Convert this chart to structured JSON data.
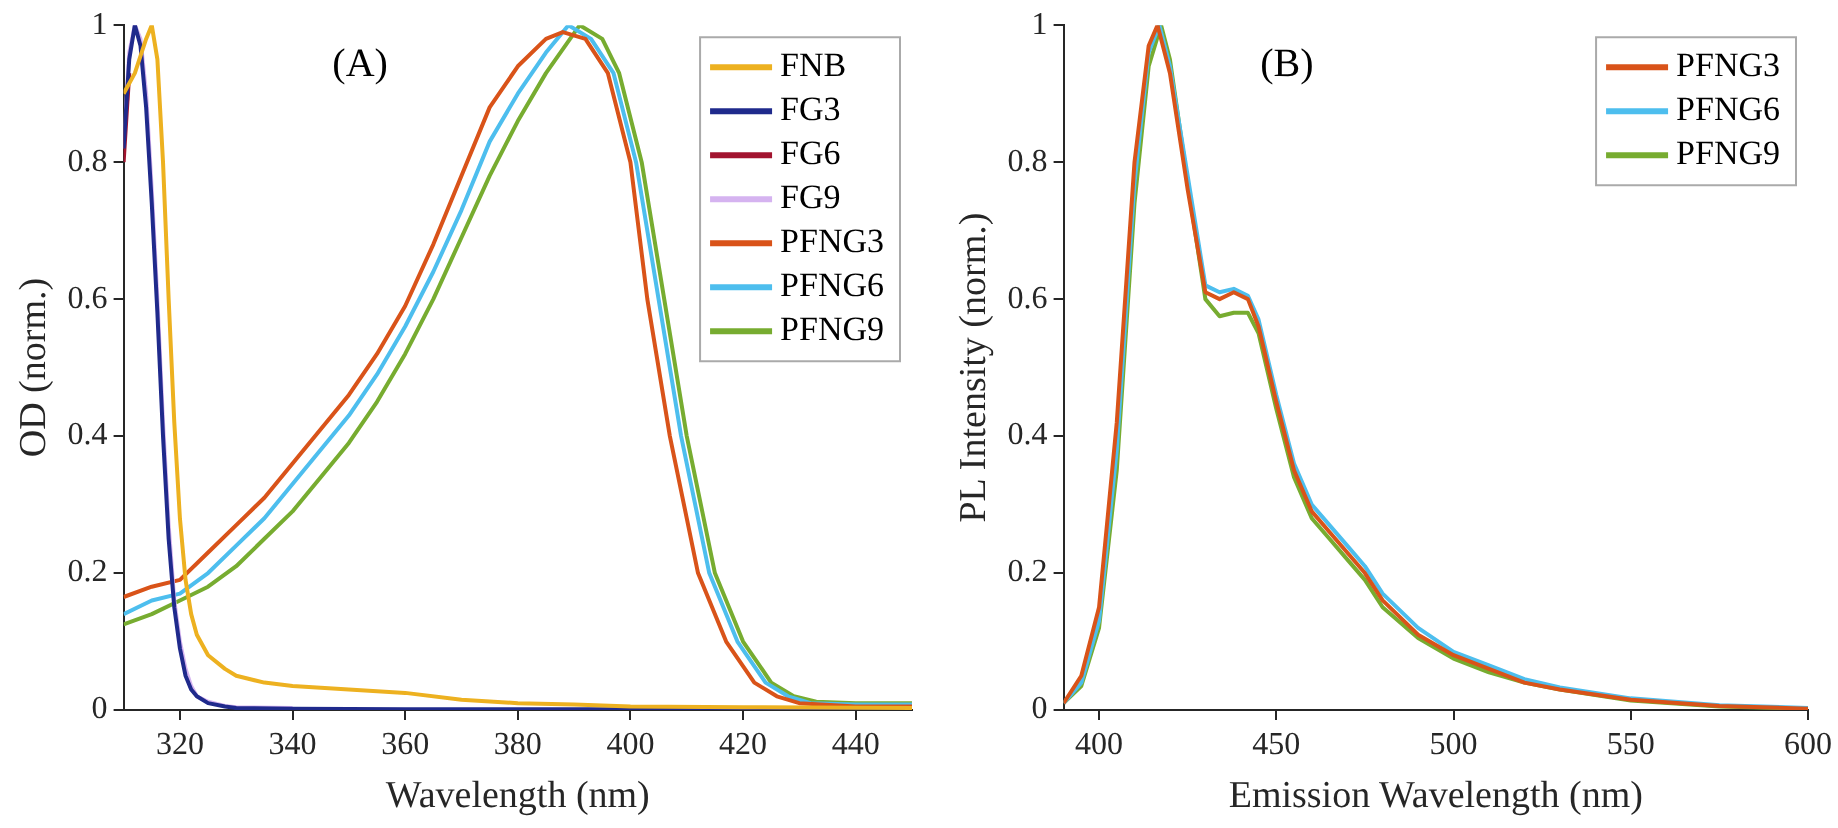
{
  "chart_data": [
    {
      "type": "line",
      "xlabel": "Wavelength (nm)",
      "ylabel": "OD (norm.)",
      "annotations": [
        "(A)"
      ],
      "xlim": [
        310,
        450
      ],
      "xticks": [
        320,
        340,
        360,
        380,
        400,
        420,
        440
      ],
      "ylim": [
        0,
        1
      ],
      "yticks": [
        0,
        0.2,
        0.4,
        0.6,
        0.8,
        1
      ],
      "grid": false,
      "legend": "top right",
      "marker": "none",
      "line_style": "solid",
      "series": [
        {
          "name": "FNB",
          "color": "#edb120",
          "x": [
            310,
            312,
            314,
            315,
            316,
            317,
            318,
            319,
            320,
            321,
            322,
            323,
            325,
            328,
            330,
            335,
            340,
            350,
            360,
            370,
            380,
            390,
            400,
            420,
            450
          ],
          "values": [
            0.9,
            0.93,
            0.98,
            1,
            0.95,
            0.8,
            0.6,
            0.42,
            0.28,
            0.19,
            0.14,
            0.11,
            0.08,
            0.06,
            0.05,
            0.04,
            0.035,
            0.03,
            0.025,
            0.015,
            0.01,
            0.008,
            0.005,
            0.004,
            0.003
          ]
        },
        {
          "name": "FG3",
          "color": "#1f2a8c",
          "x": [
            310,
            311,
            312,
            313,
            314,
            315,
            316,
            317,
            318,
            319,
            320,
            321,
            322,
            323,
            325,
            328,
            330,
            340,
            360,
            400,
            450
          ],
          "values": [
            0.82,
            0.95,
            1,
            0.97,
            0.88,
            0.74,
            0.58,
            0.4,
            0.25,
            0.15,
            0.09,
            0.05,
            0.03,
            0.02,
            0.01,
            0.005,
            0.003,
            0.002,
            0.001,
            0.001,
            0.001
          ]
        },
        {
          "name": "FG6",
          "color": "#a2142f",
          "x": [
            310,
            311
          ],
          "values": [
            0.8,
            0.93
          ]
        },
        {
          "name": "FG9",
          "color": "#d5b3f0",
          "x": [
            310,
            311,
            312,
            313,
            314,
            315,
            316,
            317,
            318,
            319,
            320,
            321,
            322,
            323,
            325,
            328,
            330,
            340
          ],
          "values": [
            0.82,
            0.96,
            1,
            0.98,
            0.9,
            0.76,
            0.6,
            0.42,
            0.27,
            0.16,
            0.1,
            0.06,
            0.035,
            0.02,
            0.012,
            0.006,
            0.004,
            0.003
          ]
        },
        {
          "name": "PFNG3",
          "color": "#d95319",
          "x": [
            310,
            315,
            320,
            325,
            330,
            335,
            340,
            345,
            350,
            355,
            360,
            365,
            370,
            375,
            380,
            385,
            388,
            392,
            396,
            400,
            403,
            407,
            412,
            417,
            422,
            426,
            430,
            440,
            450
          ],
          "values": [
            0.165,
            0.18,
            0.19,
            0.23,
            0.27,
            0.31,
            0.36,
            0.41,
            0.46,
            0.52,
            0.59,
            0.68,
            0.78,
            0.88,
            0.94,
            0.98,
            0.99,
            0.98,
            0.93,
            0.8,
            0.6,
            0.4,
            0.2,
            0.1,
            0.04,
            0.02,
            0.01,
            0.005,
            0.005
          ]
        },
        {
          "name": "PFNG6",
          "color": "#4dbeee",
          "x": [
            310,
            315,
            320,
            325,
            330,
            335,
            340,
            345,
            350,
            355,
            360,
            365,
            370,
            375,
            380,
            385,
            389,
            393,
            397,
            401,
            405,
            409,
            414,
            419,
            424,
            428,
            432,
            440,
            450
          ],
          "values": [
            0.14,
            0.16,
            0.17,
            0.2,
            0.24,
            0.28,
            0.33,
            0.38,
            0.43,
            0.49,
            0.56,
            0.64,
            0.73,
            0.83,
            0.9,
            0.96,
            1,
            0.98,
            0.93,
            0.8,
            0.6,
            0.4,
            0.2,
            0.1,
            0.04,
            0.02,
            0.01,
            0.008,
            0.008
          ]
        },
        {
          "name": "PFNG9",
          "color": "#77ac30",
          "x": [
            310,
            315,
            320,
            325,
            330,
            335,
            340,
            345,
            350,
            355,
            360,
            365,
            370,
            375,
            380,
            385,
            391,
            395,
            398,
            402,
            406,
            410,
            415,
            420,
            425,
            429,
            433,
            440,
            450
          ],
          "values": [
            0.125,
            0.14,
            0.16,
            0.18,
            0.21,
            0.25,
            0.29,
            0.34,
            0.39,
            0.45,
            0.52,
            0.6,
            0.69,
            0.78,
            0.86,
            0.93,
            1,
            0.98,
            0.93,
            0.8,
            0.6,
            0.4,
            0.2,
            0.1,
            0.04,
            0.02,
            0.012,
            0.01,
            0.01
          ]
        }
      ]
    },
    {
      "type": "line",
      "xlabel": "Emission Wavelength (nm)",
      "ylabel": "PL Intensity (norm.)",
      "annotations": [
        "(B)"
      ],
      "xlim": [
        390,
        600
      ],
      "xticks": [
        400,
        450,
        500,
        550,
        600
      ],
      "ylim": [
        0,
        1
      ],
      "yticks": [
        0,
        0.2,
        0.4,
        0.6,
        0.8,
        1
      ],
      "grid": false,
      "legend": "top right",
      "marker": "none",
      "line_style": "solid",
      "series": [
        {
          "name": "PFNG3",
          "color": "#d95319",
          "x": [
            390,
            395,
            400,
            405,
            410,
            414,
            416.5,
            420,
            425,
            430,
            434,
            438,
            442,
            445,
            450,
            455,
            460,
            465,
            470,
            475,
            480,
            490,
            500,
            510,
            520,
            530,
            550,
            575,
            600
          ],
          "values": [
            0.01,
            0.05,
            0.15,
            0.42,
            0.8,
            0.97,
            1,
            0.93,
            0.76,
            0.61,
            0.6,
            0.61,
            0.6,
            0.56,
            0.45,
            0.35,
            0.29,
            0.26,
            0.23,
            0.2,
            0.16,
            0.11,
            0.08,
            0.06,
            0.04,
            0.03,
            0.015,
            0.006,
            0.002
          ]
        },
        {
          "name": "PFNG6",
          "color": "#4dbeee",
          "x": [
            390,
            395,
            400,
            405,
            410,
            414,
            417,
            420,
            425,
            430,
            434,
            438,
            442,
            445,
            450,
            455,
            460,
            465,
            470,
            475,
            480,
            490,
            500,
            510,
            520,
            530,
            550,
            575,
            600
          ],
          "values": [
            0.01,
            0.04,
            0.13,
            0.38,
            0.77,
            0.96,
            1,
            0.94,
            0.78,
            0.62,
            0.61,
            0.615,
            0.605,
            0.57,
            0.46,
            0.36,
            0.3,
            0.27,
            0.24,
            0.21,
            0.17,
            0.12,
            0.085,
            0.065,
            0.045,
            0.033,
            0.017,
            0.007,
            0.003
          ]
        },
        {
          "name": "PFNG9",
          "color": "#77ac30",
          "x": [
            390,
            395,
            400,
            405,
            410,
            414,
            417.5,
            420,
            425,
            430,
            434,
            438,
            442,
            445,
            450,
            455,
            460,
            465,
            470,
            475,
            480,
            490,
            500,
            510,
            520,
            530,
            550,
            575,
            600
          ],
          "values": [
            0.01,
            0.035,
            0.12,
            0.35,
            0.74,
            0.94,
            1,
            0.95,
            0.77,
            0.6,
            0.575,
            0.58,
            0.58,
            0.55,
            0.44,
            0.34,
            0.28,
            0.25,
            0.22,
            0.19,
            0.15,
            0.105,
            0.075,
            0.055,
            0.04,
            0.03,
            0.014,
            0.005,
            0.002
          ]
        }
      ]
    }
  ]
}
